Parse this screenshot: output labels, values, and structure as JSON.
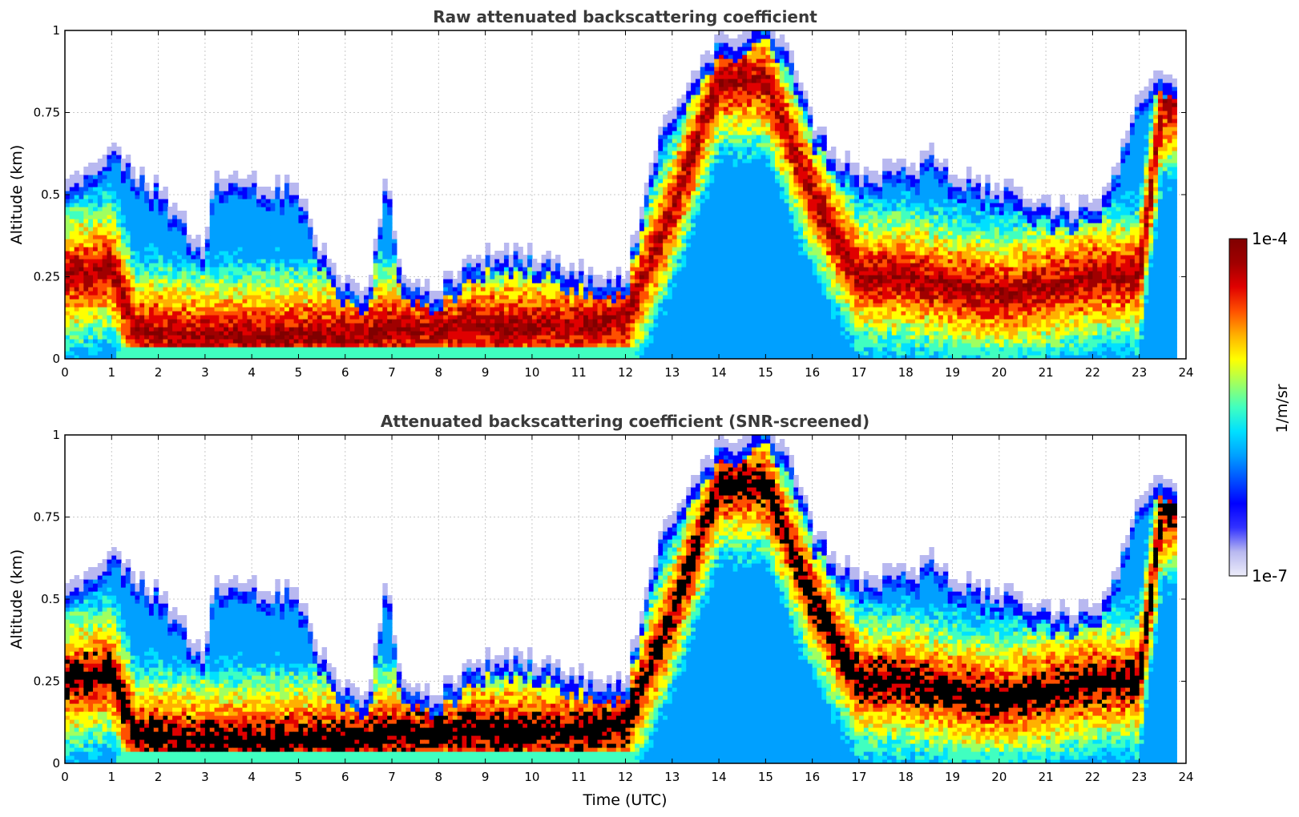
{
  "chart_data": [
    {
      "type": "heatmap",
      "title": "Raw attenuated backscattering coefficient",
      "xlabel": "",
      "ylabel": "Altitude (km)",
      "xlim": [
        0,
        24
      ],
      "ylim": [
        0,
        1
      ],
      "xticks": [
        "0",
        "1",
        "2",
        "3",
        "4",
        "5",
        "6",
        "7",
        "8",
        "9",
        "10",
        "11",
        "12",
        "13",
        "14",
        "15",
        "16",
        "17",
        "18",
        "19",
        "20",
        "21",
        "22",
        "23",
        "24"
      ],
      "yticks": [
        "0",
        "0.25",
        "0.5",
        "0.75",
        "1"
      ],
      "grid": true,
      "screened": false,
      "cloud_top_km": [
        [
          0,
          0.5
        ],
        [
          0.5,
          0.55
        ],
        [
          1,
          0.62
        ],
        [
          1.5,
          0.55
        ],
        [
          2,
          0.5
        ],
        [
          2.5,
          0.4
        ],
        [
          3,
          0.3
        ],
        [
          3.2,
          0.52
        ],
        [
          4,
          0.52
        ],
        [
          5,
          0.5
        ],
        [
          5.5,
          0.3
        ],
        [
          6,
          0.2
        ],
        [
          6.5,
          0.2
        ],
        [
          6.9,
          0.55
        ],
        [
          7.2,
          0.22
        ],
        [
          8,
          0.2
        ],
        [
          9,
          0.3
        ],
        [
          10,
          0.3
        ],
        [
          11,
          0.25
        ],
        [
          12,
          0.22
        ],
        [
          12.5,
          0.55
        ],
        [
          13,
          0.75
        ],
        [
          14,
          0.95
        ],
        [
          15,
          1.0
        ],
        [
          15.5,
          0.95
        ],
        [
          16,
          0.7
        ],
        [
          16.5,
          0.6
        ],
        [
          17,
          0.55
        ],
        [
          18,
          0.55
        ],
        [
          18.5,
          0.6
        ],
        [
          19,
          0.55
        ],
        [
          20,
          0.5
        ],
        [
          21,
          0.45
        ],
        [
          22,
          0.45
        ],
        [
          22.5,
          0.55
        ],
        [
          23,
          0.8
        ],
        [
          23.5,
          0.85
        ],
        [
          23.8,
          0.85
        ]
      ],
      "cloud_core_km": [
        [
          0,
          0.25
        ],
        [
          1,
          0.28
        ],
        [
          1.5,
          0.09
        ],
        [
          2,
          0.08
        ],
        [
          3,
          0.07
        ],
        [
          4,
          0.07
        ],
        [
          5,
          0.07
        ],
        [
          6,
          0.07
        ],
        [
          7,
          0.09
        ],
        [
          8,
          0.09
        ],
        [
          9,
          0.1
        ],
        [
          10,
          0.1
        ],
        [
          11,
          0.1
        ],
        [
          12,
          0.12
        ],
        [
          13,
          0.45
        ],
        [
          14,
          0.85
        ],
        [
          15,
          0.85
        ],
        [
          16,
          0.5
        ],
        [
          17,
          0.25
        ],
        [
          18,
          0.25
        ],
        [
          19,
          0.22
        ],
        [
          20,
          0.2
        ],
        [
          21,
          0.22
        ],
        [
          22,
          0.25
        ],
        [
          23,
          0.25
        ],
        [
          23.5,
          0.78
        ]
      ]
    },
    {
      "type": "heatmap",
      "title": "Attenuated backscattering coefficient (SNR-screened)",
      "xlabel": "Time (UTC)",
      "ylabel": "Altitude (km)",
      "xlim": [
        0,
        24
      ],
      "ylim": [
        0,
        1
      ],
      "xticks": [
        "0",
        "1",
        "2",
        "3",
        "4",
        "5",
        "6",
        "7",
        "8",
        "9",
        "10",
        "11",
        "12",
        "13",
        "14",
        "15",
        "16",
        "17",
        "18",
        "19",
        "20",
        "21",
        "22",
        "23",
        "24"
      ],
      "yticks": [
        "0",
        "0.25",
        "0.5",
        "0.75",
        "1"
      ],
      "grid": true,
      "screened": true
    }
  ],
  "colorbar": {
    "label": "1/m/sr",
    "max_label": "1e-4",
    "min_label": "1e-7",
    "colormap": [
      "#ededfa",
      "#b8b8f0",
      "#3232ff",
      "#0000ff",
      "#0050ff",
      "#00a0ff",
      "#00e0ff",
      "#40ffc0",
      "#a0ff60",
      "#ffff00",
      "#ffb000",
      "#ff5000",
      "#e00000",
      "#a00000",
      "#800000"
    ]
  }
}
